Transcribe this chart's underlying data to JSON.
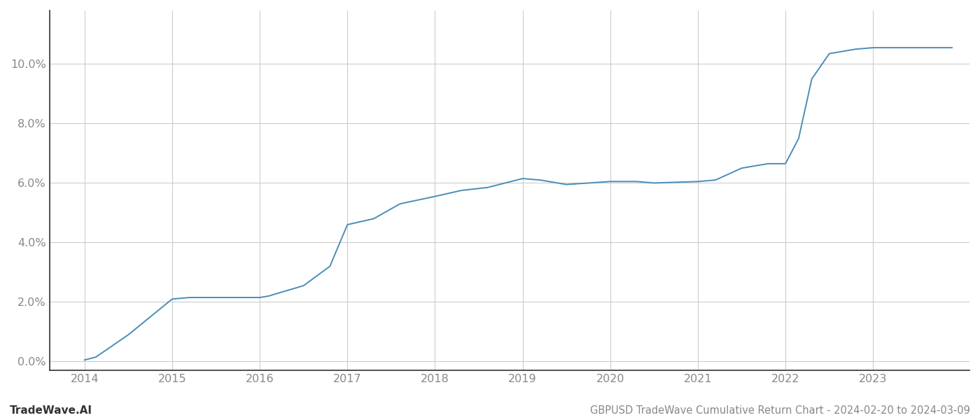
{
  "x_years": [
    2014.0,
    2014.13,
    2014.5,
    2015.0,
    2015.2,
    2015.5,
    2016.0,
    2016.1,
    2016.5,
    2016.8,
    2017.0,
    2017.3,
    2017.6,
    2018.0,
    2018.3,
    2018.6,
    2019.0,
    2019.2,
    2019.5,
    2020.0,
    2020.3,
    2020.5,
    2021.0,
    2021.2,
    2021.5,
    2021.8,
    2022.0,
    2022.15,
    2022.3,
    2022.5,
    2022.8,
    2023.0,
    2023.5,
    2023.9
  ],
  "y_values": [
    0.05,
    0.15,
    0.9,
    2.1,
    2.15,
    2.15,
    2.15,
    2.2,
    2.55,
    3.2,
    4.6,
    4.8,
    5.3,
    5.55,
    5.75,
    5.85,
    6.15,
    6.1,
    5.95,
    6.05,
    6.05,
    6.0,
    6.05,
    6.1,
    6.5,
    6.65,
    6.65,
    7.5,
    9.5,
    10.35,
    10.5,
    10.55,
    10.55,
    10.55
  ],
  "line_color": "#4a8db8",
  "line_width": 1.4,
  "background_color": "#ffffff",
  "grid_color": "#cccccc",
  "ylabel_ticks": [
    0.0,
    2.0,
    4.0,
    6.0,
    8.0,
    10.0
  ],
  "ylabel_tick_labels": [
    "0.0%",
    "2.0%",
    "4.0%",
    "6.0%",
    "8.0%",
    "10.0%"
  ],
  "xtick_years": [
    2014,
    2015,
    2016,
    2017,
    2018,
    2019,
    2020,
    2021,
    2022,
    2023
  ],
  "xlim": [
    2013.6,
    2024.1
  ],
  "ylim": [
    -0.3,
    11.8
  ],
  "footer_left": "TradeWave.AI",
  "footer_right": "GBPUSD TradeWave Cumulative Return Chart - 2024-02-20 to 2024-03-09",
  "tick_color": "#888888",
  "left_spine_color": "#333333"
}
